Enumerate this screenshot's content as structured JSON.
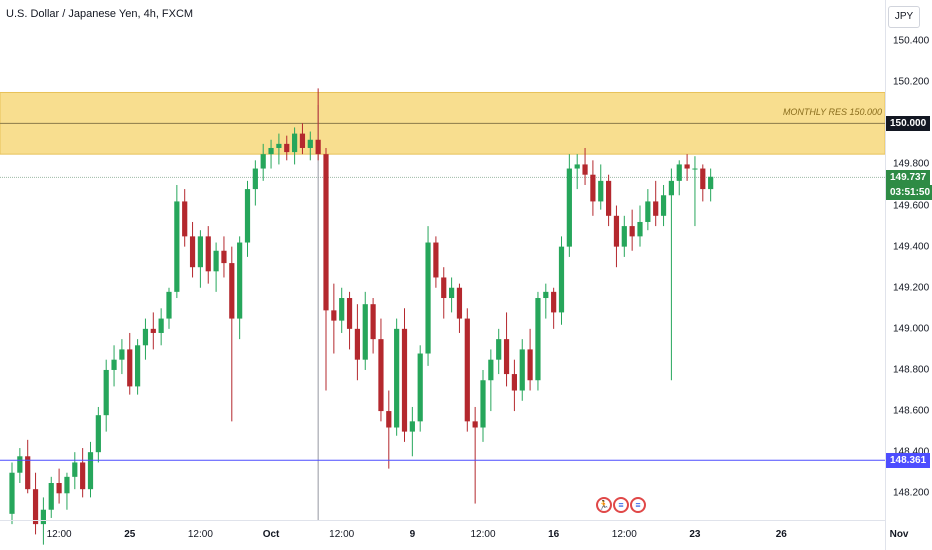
{
  "header": {
    "title": "U.S. Dollar / Japanese Yen, 4h, FXCM",
    "currency": "JPY"
  },
  "zone": {
    "label": "MONTHLY RES 150.000",
    "color": "#f7d87b"
  },
  "price_tags": {
    "resistance": "150.000",
    "current_price": "149.737",
    "countdown": "03:51:50",
    "support": "148.361"
  },
  "colors": {
    "up": "#26a65b",
    "down": "#b4282e",
    "support_line": "#4d4dff",
    "current_tag": "#2e8b45",
    "resistance_tag": "#131722"
  },
  "events": [
    {
      "icon": "flag-usa-icon"
    },
    {
      "icon": "flag-usa-icon"
    },
    {
      "icon": "flag-usa-icon"
    }
  ],
  "chart_data": {
    "type": "candlestick",
    "title": "U.S. Dollar / Japanese Yen, 4h, FXCM",
    "xlabel": "",
    "ylabel": "",
    "ylim": [
      148.07,
      150.6
    ],
    "y_ticks": [
      "150.400",
      "150.200",
      "149.800",
      "149.600",
      "149.400",
      "149.200",
      "149.000",
      "148.800",
      "148.600",
      "148.400",
      "148.200"
    ],
    "x_ticks": [
      {
        "label": "12:00",
        "bar": 6,
        "bold": false
      },
      {
        "label": "25",
        "bar": 15,
        "bold": true
      },
      {
        "label": "12:00",
        "bar": 24,
        "bold": false
      },
      {
        "label": "Oct",
        "bar": 33,
        "bold": true
      },
      {
        "label": "12:00",
        "bar": 42,
        "bold": false
      },
      {
        "label": "9",
        "bar": 51,
        "bold": true
      },
      {
        "label": "12:00",
        "bar": 60,
        "bold": false
      },
      {
        "label": "16",
        "bar": 69,
        "bold": true
      },
      {
        "label": "12:00",
        "bar": 78,
        "bold": false
      },
      {
        "label": "23",
        "bar": 87,
        "bold": true
      },
      {
        "label": "26",
        "bar": 98,
        "bold": true
      },
      {
        "label": "Nov",
        "bar": 113,
        "bold": true
      }
    ],
    "levels": {
      "zone_low": 149.85,
      "zone_high": 150.15,
      "resistance": 150.0,
      "support": 148.361,
      "current": 149.737
    },
    "crosshair_bar": 39,
    "candles": [
      [
        148.1,
        148.35,
        148.05,
        148.3
      ],
      [
        148.3,
        148.42,
        148.25,
        148.38
      ],
      [
        148.38,
        148.46,
        148.2,
        148.22
      ],
      [
        148.22,
        148.3,
        148.0,
        148.05
      ],
      [
        148.05,
        148.18,
        147.95,
        148.12
      ],
      [
        148.12,
        148.28,
        148.08,
        148.25
      ],
      [
        148.25,
        148.32,
        148.15,
        148.2
      ],
      [
        148.2,
        148.3,
        148.12,
        148.28
      ],
      [
        148.28,
        148.4,
        148.22,
        148.35
      ],
      [
        148.35,
        148.42,
        148.18,
        148.22
      ],
      [
        148.22,
        148.45,
        148.18,
        148.4
      ],
      [
        148.4,
        148.62,
        148.35,
        148.58
      ],
      [
        148.58,
        148.85,
        148.5,
        148.8
      ],
      [
        148.8,
        148.92,
        148.72,
        148.85
      ],
      [
        148.85,
        148.95,
        148.78,
        148.9
      ],
      [
        148.9,
        148.98,
        148.68,
        148.72
      ],
      [
        148.72,
        148.95,
        148.68,
        148.92
      ],
      [
        148.92,
        149.05,
        148.85,
        149.0
      ],
      [
        149.0,
        149.08,
        148.9,
        148.98
      ],
      [
        148.98,
        149.1,
        148.92,
        149.05
      ],
      [
        149.05,
        149.2,
        149.0,
        149.18
      ],
      [
        149.18,
        149.7,
        149.15,
        149.62
      ],
      [
        149.62,
        149.68,
        149.4,
        149.45
      ],
      [
        149.45,
        149.52,
        149.25,
        149.3
      ],
      [
        149.3,
        149.48,
        149.2,
        149.45
      ],
      [
        149.45,
        149.5,
        149.22,
        149.28
      ],
      [
        149.28,
        149.42,
        149.18,
        149.38
      ],
      [
        149.38,
        149.45,
        149.25,
        149.32
      ],
      [
        149.32,
        149.4,
        148.55,
        149.05
      ],
      [
        149.05,
        149.45,
        148.95,
        149.42
      ],
      [
        149.42,
        149.72,
        149.35,
        149.68
      ],
      [
        149.68,
        149.82,
        149.6,
        149.78
      ],
      [
        149.78,
        149.9,
        149.72,
        149.85
      ],
      [
        149.85,
        149.92,
        149.78,
        149.88
      ],
      [
        149.88,
        149.95,
        149.8,
        149.9
      ],
      [
        149.9,
        149.94,
        149.82,
        149.86
      ],
      [
        149.86,
        149.98,
        149.8,
        149.95
      ],
      [
        149.95,
        150.0,
        149.85,
        149.88
      ],
      [
        149.88,
        149.96,
        149.82,
        149.92
      ],
      [
        149.92,
        150.17,
        149.82,
        149.85
      ],
      [
        149.85,
        149.88,
        148.7,
        149.09
      ],
      [
        149.09,
        149.22,
        148.88,
        149.04
      ],
      [
        149.04,
        149.2,
        148.98,
        149.15
      ],
      [
        149.15,
        149.18,
        148.9,
        149.0
      ],
      [
        149.0,
        149.12,
        148.75,
        148.85
      ],
      [
        148.85,
        149.18,
        148.8,
        149.12
      ],
      [
        149.12,
        149.15,
        148.88,
        148.95
      ],
      [
        148.95,
        149.05,
        148.55,
        148.6
      ],
      [
        148.6,
        148.7,
        148.32,
        148.52
      ],
      [
        148.52,
        149.05,
        148.48,
        149.0
      ],
      [
        149.0,
        149.1,
        148.45,
        148.5
      ],
      [
        148.5,
        148.62,
        148.38,
        148.55
      ],
      [
        148.55,
        148.92,
        148.5,
        148.88
      ],
      [
        148.88,
        149.5,
        148.82,
        149.42
      ],
      [
        149.42,
        149.45,
        149.2,
        149.25
      ],
      [
        149.25,
        149.3,
        149.05,
        149.15
      ],
      [
        149.15,
        149.25,
        149.08,
        149.2
      ],
      [
        149.2,
        149.22,
        148.98,
        149.05
      ],
      [
        149.05,
        149.1,
        148.5,
        148.55
      ],
      [
        148.55,
        148.62,
        148.15,
        148.52
      ],
      [
        148.52,
        148.8,
        148.45,
        148.75
      ],
      [
        148.75,
        148.9,
        148.6,
        148.85
      ],
      [
        148.85,
        149.0,
        148.78,
        148.95
      ],
      [
        148.95,
        149.08,
        148.72,
        148.78
      ],
      [
        148.78,
        148.85,
        148.6,
        148.7
      ],
      [
        148.7,
        148.95,
        148.65,
        148.9
      ],
      [
        148.9,
        149.0,
        148.7,
        148.75
      ],
      [
        148.75,
        149.18,
        148.7,
        149.15
      ],
      [
        149.15,
        149.22,
        149.05,
        149.18
      ],
      [
        149.18,
        149.2,
        149.0,
        149.08
      ],
      [
        149.08,
        149.45,
        149.02,
        149.4
      ],
      [
        149.4,
        149.85,
        149.35,
        149.78
      ],
      [
        149.78,
        149.85,
        149.68,
        149.8
      ],
      [
        149.8,
        149.88,
        149.7,
        149.75
      ],
      [
        149.75,
        149.82,
        149.55,
        149.62
      ],
      [
        149.62,
        149.8,
        149.58,
        149.72
      ],
      [
        149.72,
        149.75,
        149.5,
        149.55
      ],
      [
        149.55,
        149.6,
        149.3,
        149.4
      ],
      [
        149.4,
        149.55,
        149.35,
        149.5
      ],
      [
        149.5,
        149.58,
        149.38,
        149.45
      ],
      [
        149.45,
        149.6,
        149.4,
        149.52
      ],
      [
        149.52,
        149.68,
        149.48,
        149.62
      ],
      [
        149.62,
        149.72,
        149.5,
        149.55
      ],
      [
        149.55,
        149.7,
        149.5,
        149.65
      ],
      [
        149.65,
        149.78,
        148.75,
        149.72
      ],
      [
        149.72,
        149.82,
        149.65,
        149.8
      ],
      [
        149.8,
        149.85,
        149.72,
        149.78
      ],
      [
        149.78,
        149.84,
        149.5,
        149.78
      ],
      [
        149.78,
        149.8,
        149.62,
        149.68
      ],
      [
        149.68,
        149.78,
        149.62,
        149.74
      ]
    ]
  }
}
